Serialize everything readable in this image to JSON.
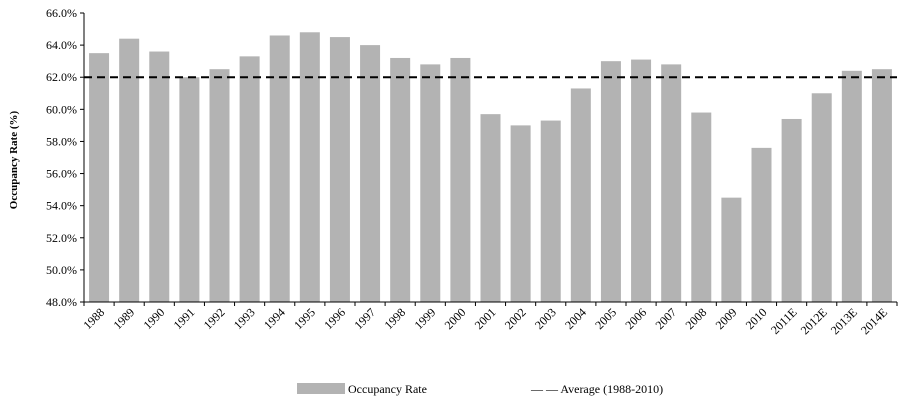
{
  "chart_data": {
    "type": "bar",
    "title": "",
    "xlabel": "",
    "ylabel": "Occupancy Rate (%)",
    "ylim": [
      48.0,
      66.0
    ],
    "y_ticks": [
      "48.0%",
      "50.0%",
      "52.0%",
      "54.0%",
      "56.0%",
      "58.0%",
      "60.0%",
      "62.0%",
      "64.0%",
      "66.0%"
    ],
    "grid": false,
    "legend_position": "bottom",
    "categories": [
      "1988",
      "1989",
      "1990",
      "1991",
      "1992",
      "1993",
      "1994",
      "1995",
      "1996",
      "1997",
      "1998",
      "1999",
      "2000",
      "2001",
      "2002",
      "2003",
      "2004",
      "2005",
      "2006",
      "2007",
      "2008",
      "2009",
      "2010",
      "2011E",
      "2012E",
      "2013E",
      "2014E"
    ],
    "series": [
      {
        "name": "Occupancy Rate",
        "color": "#b3b3b3",
        "values": [
          63.5,
          64.4,
          63.6,
          62.0,
          62.5,
          63.3,
          64.6,
          64.8,
          64.5,
          64.0,
          63.2,
          62.8,
          63.2,
          59.7,
          59.0,
          59.3,
          61.3,
          63.0,
          63.1,
          62.8,
          59.8,
          54.5,
          57.6,
          59.4,
          61.0,
          62.4,
          62.5
        ]
      }
    ],
    "reference_line": {
      "name": "— — Average (1988-2010)",
      "value": 62.0,
      "color": "#000000",
      "style": "dashed"
    }
  }
}
